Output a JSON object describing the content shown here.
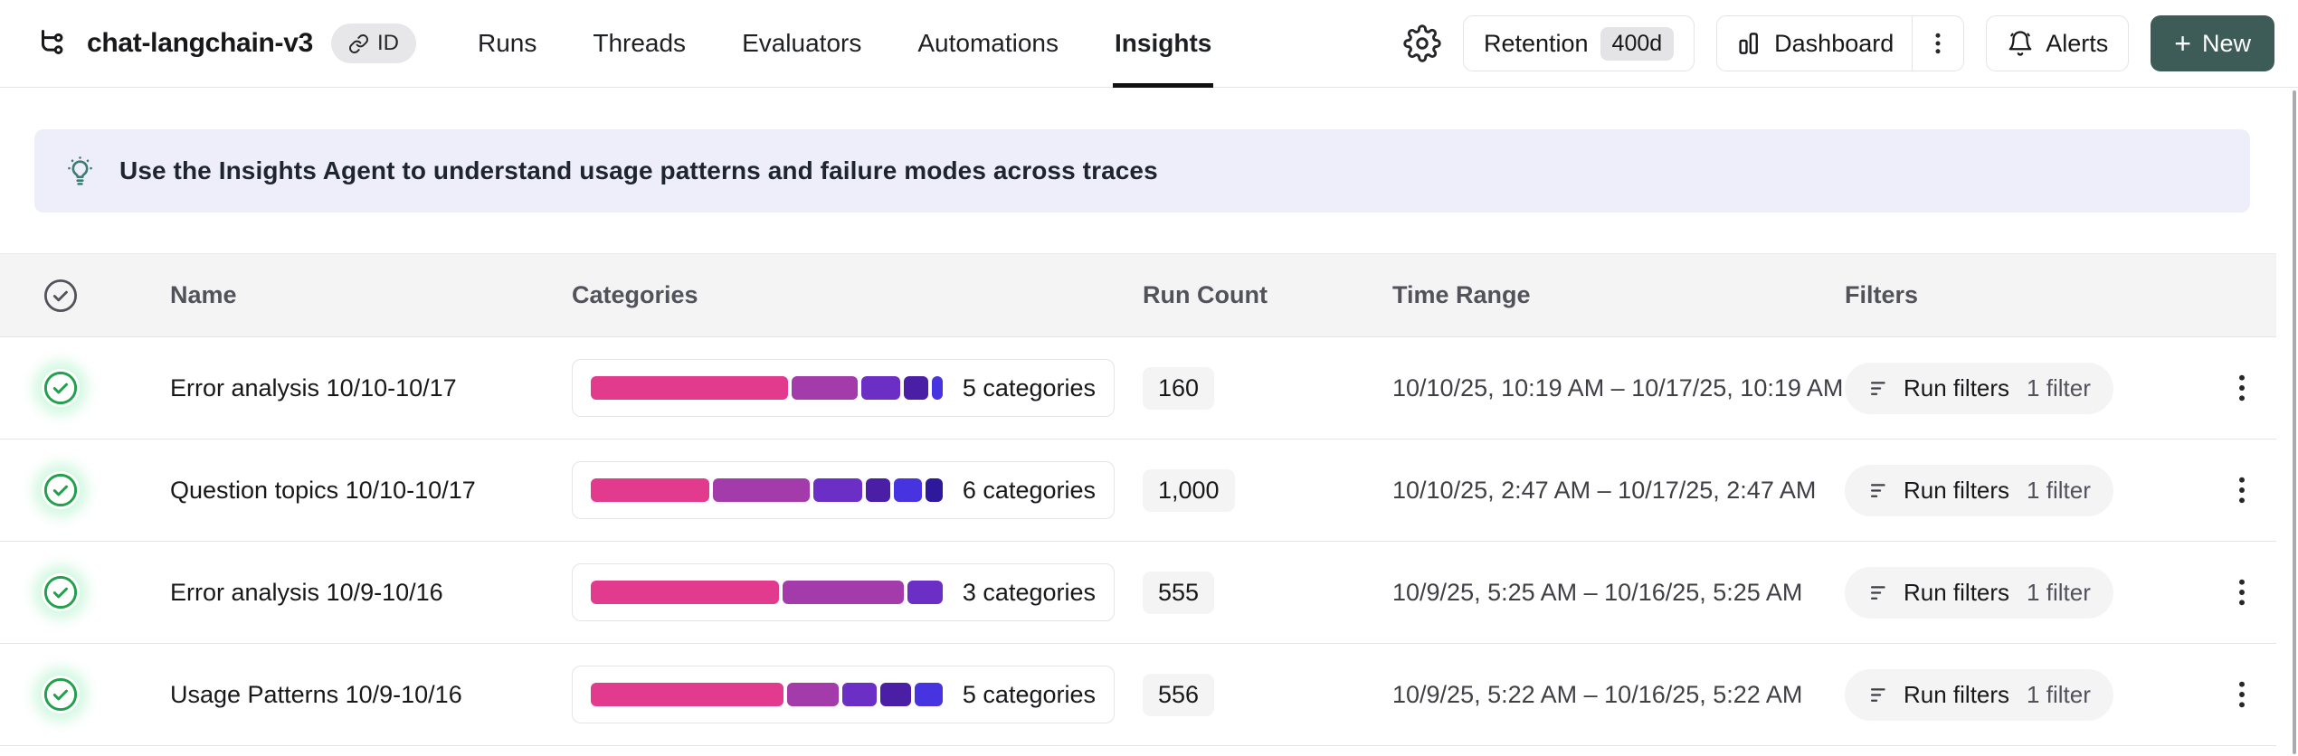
{
  "header": {
    "project_title": "chat-langchain-v3",
    "id_badge_label": "ID",
    "tabs": [
      {
        "label": "Runs",
        "active": false
      },
      {
        "label": "Threads",
        "active": false
      },
      {
        "label": "Evaluators",
        "active": false
      },
      {
        "label": "Automations",
        "active": false
      },
      {
        "label": "Insights",
        "active": true
      }
    ],
    "retention_label": "Retention",
    "retention_value": "400d",
    "dashboard_label": "Dashboard",
    "alerts_label": "Alerts",
    "new_label": "New",
    "new_plus": "+",
    "new_button_color": "#3E5C57"
  },
  "banner": {
    "text": "Use the Insights Agent to understand usage patterns and failure modes across traces",
    "background": "#EEEEFB",
    "icon_color": "#3E7C70"
  },
  "table": {
    "columns": [
      "Name",
      "Categories",
      "Run Count",
      "Time Range",
      "Filters"
    ],
    "status_green": "#21A14B",
    "palette": {
      "pink": "#E23A8C",
      "magenta": "#A43BAB",
      "violet": "#6B2FC6",
      "indigo": "#4A1FA5",
      "blue_violet": "#4733DF",
      "navy": "#2E189C"
    },
    "rows": [
      {
        "name": "Error analysis 10/10-10/17",
        "categories_label": "5 categories",
        "segments": [
          {
            "color": "pink",
            "pct": 56
          },
          {
            "color": "magenta",
            "pct": 19
          },
          {
            "color": "violet",
            "pct": 11
          },
          {
            "color": "indigo",
            "pct": 7
          },
          {
            "color": "blue_violet",
            "pct": 3
          }
        ],
        "run_count": "160",
        "time_range": "10/10/25, 10:19 AM – 10/17/25, 10:19 AM",
        "filters_label": "Run filters",
        "filters_count": "1 filter"
      },
      {
        "name": "Question topics 10/10-10/17",
        "categories_label": "6 categories",
        "segments": [
          {
            "color": "pink",
            "pct": 34
          },
          {
            "color": "magenta",
            "pct": 28
          },
          {
            "color": "violet",
            "pct": 14
          },
          {
            "color": "indigo",
            "pct": 7
          },
          {
            "color": "blue_violet",
            "pct": 8
          },
          {
            "color": "navy",
            "pct": 5
          }
        ],
        "run_count": "1,000",
        "time_range": "10/10/25, 2:47 AM – 10/17/25, 2:47 AM",
        "filters_label": "Run filters",
        "filters_count": "1 filter"
      },
      {
        "name": "Error analysis 10/9-10/16",
        "categories_label": "3 categories",
        "segments": [
          {
            "color": "pink",
            "pct": 54
          },
          {
            "color": "magenta",
            "pct": 35
          },
          {
            "color": "violet",
            "pct": 10
          }
        ],
        "run_count": "555",
        "time_range": "10/9/25, 5:25 AM – 10/16/25, 5:25 AM",
        "filters_label": "Run filters",
        "filters_count": "1 filter"
      },
      {
        "name": "Usage Patterns 10/9-10/16",
        "categories_label": "5 categories",
        "segments": [
          {
            "color": "pink",
            "pct": 56
          },
          {
            "color": "magenta",
            "pct": 15
          },
          {
            "color": "violet",
            "pct": 10
          },
          {
            "color": "indigo",
            "pct": 9
          },
          {
            "color": "blue_violet",
            "pct": 8
          }
        ],
        "run_count": "556",
        "time_range": "10/9/25, 5:22 AM – 10/16/25, 5:22 AM",
        "filters_label": "Run filters",
        "filters_count": "1 filter"
      }
    ]
  },
  "icons": [
    "project-tree-icon",
    "link-icon",
    "gear-icon",
    "bar-chart-icon",
    "kebab-menu-icon",
    "bell-icon",
    "plus-icon",
    "lightbulb-icon",
    "circle-check-icon",
    "filter-icon"
  ]
}
